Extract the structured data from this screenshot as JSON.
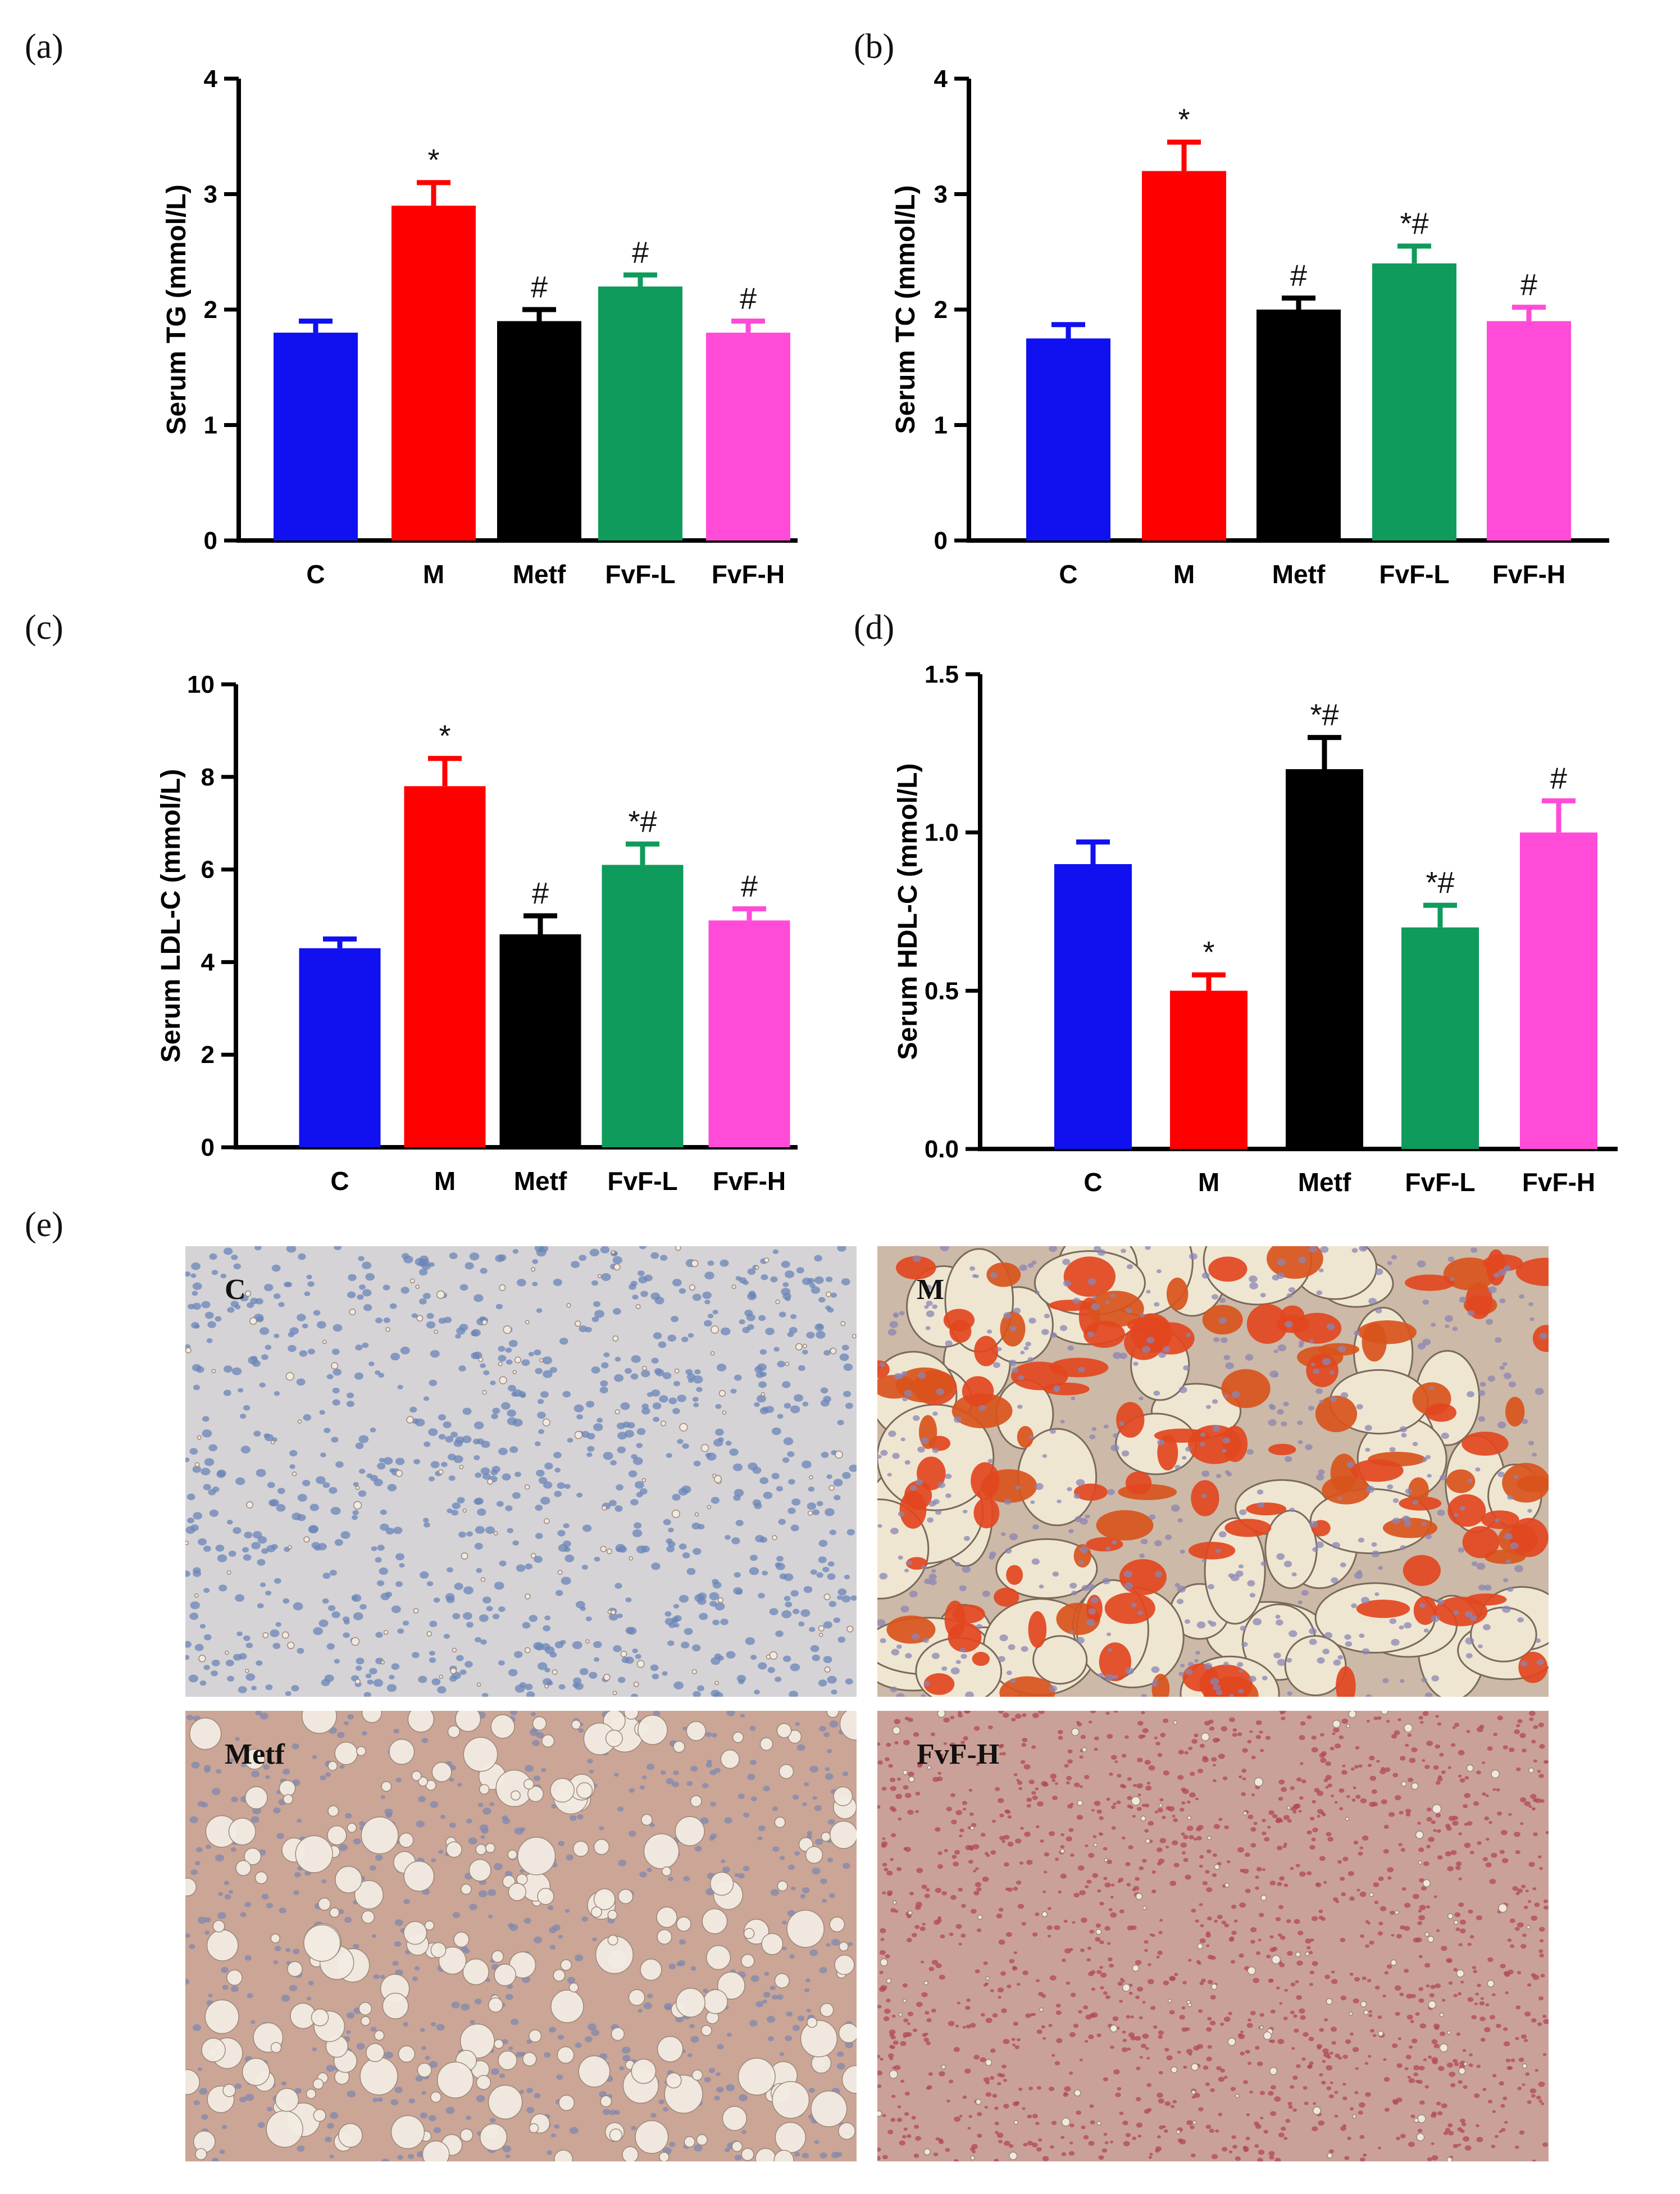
{
  "panels": {
    "a": "(a)",
    "b": "(b)",
    "c": "(c)",
    "d": "(d)",
    "e": "(e)"
  },
  "colors": {
    "C": "#1010f0",
    "M": "#ff0000",
    "Metf": "#000000",
    "FvF-L": "#0f9b5b",
    "FvF-H": "#ff4bd8"
  },
  "chart_data": [
    {
      "type": "bar",
      "categories": [
        "C",
        "M",
        "Metf",
        "FvF-L",
        "FvF-H"
      ],
      "values": [
        1.8,
        2.9,
        1.9,
        2.2,
        1.8
      ],
      "errors": [
        0.1,
        0.2,
        0.1,
        0.1,
        0.1
      ],
      "significance": [
        "",
        "*",
        "#",
        "#",
        "#"
      ],
      "ylabel": "Serum TG (mmol/L)",
      "ylim": [
        0,
        4
      ],
      "yticks": [
        0,
        1,
        2,
        3,
        4
      ],
      "ytick_labels": [
        "0",
        "1",
        "2",
        "3",
        "4"
      ]
    },
    {
      "type": "bar",
      "categories": [
        "C",
        "M",
        "Metf",
        "FvF-L",
        "FvF-H"
      ],
      "values": [
        1.75,
        3.2,
        2.0,
        2.4,
        1.9
      ],
      "errors": [
        0.12,
        0.25,
        0.1,
        0.15,
        0.12
      ],
      "significance": [
        "",
        "*",
        "#",
        "*#",
        "#"
      ],
      "ylabel": "Serum TC (mmol/L)",
      "ylim": [
        0,
        4
      ],
      "yticks": [
        0,
        1,
        2,
        3,
        4
      ],
      "ytick_labels": [
        "0",
        "1",
        "2",
        "3",
        "4"
      ]
    },
    {
      "type": "bar",
      "categories": [
        "C",
        "M",
        "Metf",
        "FvF-L",
        "FvF-H"
      ],
      "values": [
        4.3,
        7.8,
        4.6,
        6.1,
        4.9
      ],
      "errors": [
        0.2,
        0.6,
        0.4,
        0.45,
        0.25
      ],
      "significance": [
        "",
        "*",
        "#",
        "*#",
        "#"
      ],
      "ylabel": "Serum LDL-C (mmol/L)",
      "ylim": [
        0,
        10
      ],
      "yticks": [
        0,
        2,
        4,
        6,
        8,
        10
      ],
      "ytick_labels": [
        "0",
        "2",
        "4",
        "6",
        "8",
        "10"
      ]
    },
    {
      "type": "bar",
      "categories": [
        "C",
        "M",
        "Metf",
        "FvF-L",
        "FvF-H"
      ],
      "values": [
        0.9,
        0.5,
        1.2,
        0.7,
        1.0
      ],
      "errors": [
        0.07,
        0.05,
        0.1,
        0.07,
        0.1
      ],
      "significance": [
        "",
        "*",
        "*#",
        "*#",
        "#"
      ],
      "ylabel": "Serum HDL-C (mmol/L)",
      "ylim": [
        0,
        1.5
      ],
      "yticks": [
        0,
        0.5,
        1.0,
        1.5
      ],
      "ytick_labels": [
        "0.0",
        "0.5",
        "1.0",
        "1.5"
      ]
    }
  ],
  "micrographs": [
    {
      "label": "C",
      "stain": "control"
    },
    {
      "label": "M",
      "stain": "model"
    },
    {
      "label": "Metf",
      "stain": "metformin"
    },
    {
      "label": "FvF-H",
      "stain": "fvf-high"
    }
  ]
}
